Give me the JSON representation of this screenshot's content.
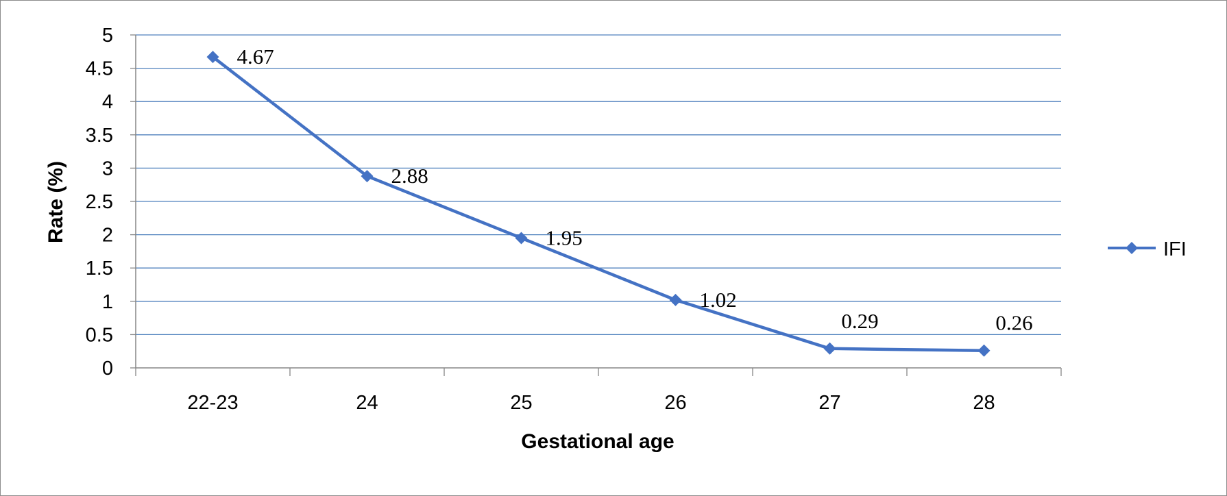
{
  "chart_data": {
    "type": "line",
    "categories": [
      "22-23",
      "24",
      "25",
      "26",
      "27",
      "28"
    ],
    "series": [
      {
        "name": "IFI",
        "values": [
          4.67,
          2.88,
          1.95,
          1.02,
          0.29,
          0.26
        ]
      }
    ],
    "data_labels": [
      "4.67",
      "2.88",
      "1.95",
      "1.02",
      "0.29",
      "0.26"
    ],
    "y_ticks": [
      "0",
      "0.5",
      "1",
      "1.5",
      "2",
      "2.5",
      "3",
      "3.5",
      "4",
      "4.5",
      "5"
    ],
    "xlabel": "Gestational age",
    "ylabel": "Rate (%)",
    "ylim": [
      0,
      5
    ],
    "grid": true,
    "legend_position": "right",
    "colors": {
      "series": "#4472c4",
      "grid": "#4f81bd",
      "axis": "#868686"
    }
  }
}
